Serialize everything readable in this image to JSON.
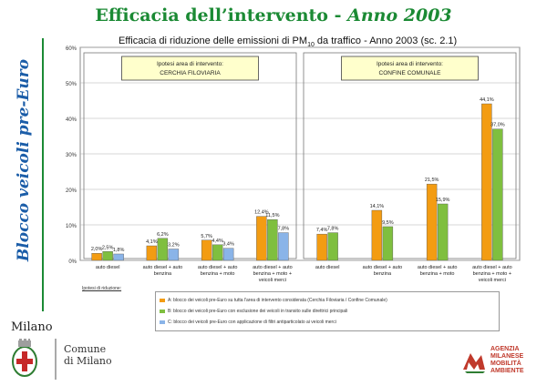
{
  "slide": {
    "title_main": "Efficacia dell’intervento - ",
    "title_year": "Anno 2003",
    "side_label": "Blocco veicoli pre-Euro"
  },
  "chart_title": {
    "prefix": "Efficacia di riduzione delle emissioni di PM",
    "subscript": "10",
    "suffix": " da traffico - Anno 2003  (sc. 2.1)"
  },
  "colors": {
    "orange": "#f39c12",
    "green": "#7fbf3f",
    "blue": "#8ab4e8",
    "panel": "#ffffcc",
    "title_green": "#1b8a34"
  },
  "chart_data": {
    "type": "bar",
    "ylim": [
      0,
      60
    ],
    "yticks": [
      "0%",
      "10%",
      "20%",
      "30%",
      "40%",
      "50%",
      "60%"
    ],
    "panels": [
      {
        "name": "Ipotesi area di intervento:",
        "label": "CERCHIA FILOVIARIA"
      },
      {
        "name": "Ipotesi area di intervento:",
        "label": "CONFINE COMUNALE"
      }
    ],
    "categories": [
      "auto diesel",
      "auto diesel + auto benzina",
      "auto diesel + auto benzina + moto",
      "auto diesel + auto benzina + moto + veicoli merci",
      "auto diesel",
      "auto diesel + auto benzina",
      "auto diesel + auto benzina + moto",
      "auto diesel + auto benzina + moto + veicoli merci"
    ],
    "series": [
      {
        "name": "Ipotesi A",
        "color": "#f39c12",
        "values": [
          2.0,
          4.1,
          5.7,
          12.4,
          7.4,
          14.1,
          21.5,
          44.1
        ]
      },
      {
        "name": "Ipotesi B",
        "color": "#7fbf3f",
        "values": [
          2.5,
          6.2,
          4.4,
          11.5,
          7.8,
          9.5,
          15.9,
          37.0
        ]
      },
      {
        "name": "Ipotesi C",
        "color": "#8ab4e8",
        "values": [
          1.8,
          3.2,
          3.4,
          7.8,
          null,
          null,
          null,
          null
        ]
      }
    ],
    "data_labels": [
      [
        "2,0%",
        "4,1%",
        "5,7%",
        "12,4%",
        "7,4%",
        "14,1%",
        "21,5%",
        "44,1%"
      ],
      [
        "2,5%",
        "6,2%",
        "4,4%",
        "11,5%",
        "7,8%",
        "9,5%",
        "15,9%",
        "37,0%"
      ],
      [
        "1,8%",
        "3,2%",
        "3,4%",
        "7,8%",
        null,
        null,
        null,
        null
      ]
    ],
    "legend_title": "Ipotesi di riduzione:",
    "legend": [
      "A: blocco dei veicoli pre-Euro su tutta l'area di intervento considerata (Cerchia Filoviaria / Confine Comunale)",
      "B: blocco dei veicoli pre-Euro con esclusione dei veicoli in transito sulle direttrici principali",
      "C: blocco dei veicoli pre-Euro con applicazione di filtri antiparticolato ai veicoli merci"
    ]
  },
  "footer": {
    "milano": "Milano",
    "comune_line1": "Comune",
    "comune_line2": "di Milano",
    "agency_lines": [
      "AGENZIA",
      "MILANESE",
      "MOBILITÀ",
      "AMBIENTE"
    ]
  }
}
